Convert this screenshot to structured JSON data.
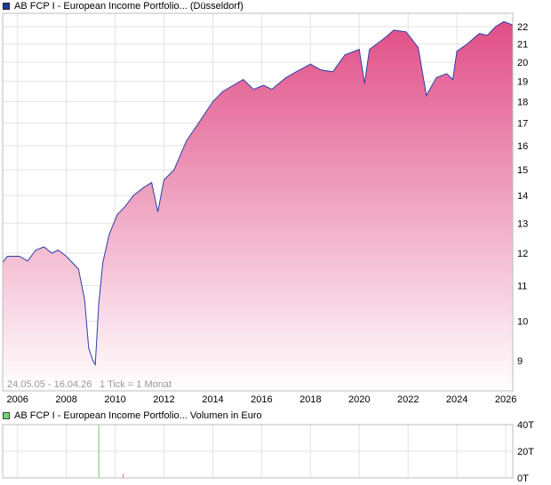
{
  "main_legend": {
    "label": "AB FCP I - European Income Portfolio... (Düsseldorf)",
    "color": "#1c3d9c"
  },
  "volume_legend": {
    "label": "AB FCP I - European Income Portfolio... Volumen in Euro",
    "color": "#6fd66f"
  },
  "info": {
    "range": "24.05.05 - 16.04.26",
    "tick": "1 Tick = 1 Monat"
  },
  "colors": {
    "line": "#2b3fa8",
    "fill_top": "#e04e86",
    "fill_bottom": "#ffffff",
    "grid": "#e3e3e3"
  },
  "chart_data": [
    {
      "type": "area",
      "title": "",
      "y_scale": "log",
      "ylim": [
        8.3,
        22.8
      ],
      "xlim": [
        "2005-05-24",
        "2026-04-16"
      ],
      "x_tick_labels": [
        "2006",
        "2008",
        "2010",
        "2012",
        "2014",
        "2016",
        "2018",
        "2020",
        "2022",
        "2024",
        "2026"
      ],
      "y_tick_labels": [
        "9",
        "10",
        "11",
        "12",
        "13",
        "14",
        "15",
        "16",
        "17",
        "18",
        "19",
        "20",
        "21",
        "22"
      ],
      "grid": true,
      "series": [
        {
          "values": [
            {
              "x": "2005-05-24",
              "y": 11.7
            },
            {
              "x": "2005-08-01",
              "y": 11.9
            },
            {
              "x": "2005-11-01",
              "y": 11.9
            },
            {
              "x": "2006-02-01",
              "y": 11.9
            },
            {
              "x": "2006-06-01",
              "y": 11.75
            },
            {
              "x": "2006-10-01",
              "y": 12.1
            },
            {
              "x": "2007-02-01",
              "y": 12.2
            },
            {
              "x": "2007-06-01",
              "y": 12.0
            },
            {
              "x": "2007-09-01",
              "y": 12.1
            },
            {
              "x": "2008-01-01",
              "y": 11.9
            },
            {
              "x": "2008-04-01",
              "y": 11.7
            },
            {
              "x": "2008-07-01",
              "y": 11.5
            },
            {
              "x": "2008-10-01",
              "y": 10.6
            },
            {
              "x": "2008-12-01",
              "y": 9.3
            },
            {
              "x": "2009-02-01",
              "y": 9.0
            },
            {
              "x": "2009-03-10",
              "y": 8.9
            },
            {
              "x": "2009-05-01",
              "y": 10.5
            },
            {
              "x": "2009-07-01",
              "y": 11.7
            },
            {
              "x": "2009-10-01",
              "y": 12.6
            },
            {
              "x": "2010-02-01",
              "y": 13.3
            },
            {
              "x": "2010-06-01",
              "y": 13.6
            },
            {
              "x": "2010-10-01",
              "y": 14.0
            },
            {
              "x": "2011-03-01",
              "y": 14.3
            },
            {
              "x": "2011-07-01",
              "y": 14.5
            },
            {
              "x": "2011-10-01",
              "y": 13.4
            },
            {
              "x": "2012-01-01",
              "y": 14.6
            },
            {
              "x": "2012-06-01",
              "y": 15.0
            },
            {
              "x": "2012-12-01",
              "y": 16.2
            },
            {
              "x": "2013-06-01",
              "y": 17.0
            },
            {
              "x": "2014-01-01",
              "y": 18.0
            },
            {
              "x": "2014-06-01",
              "y": 18.5
            },
            {
              "x": "2015-04-01",
              "y": 19.1
            },
            {
              "x": "2015-09-01",
              "y": 18.6
            },
            {
              "x": "2016-02-01",
              "y": 18.8
            },
            {
              "x": "2016-06-01",
              "y": 18.6
            },
            {
              "x": "2017-01-01",
              "y": 19.2
            },
            {
              "x": "2017-06-01",
              "y": 19.5
            },
            {
              "x": "2018-01-01",
              "y": 19.9
            },
            {
              "x": "2018-06-01",
              "y": 19.6
            },
            {
              "x": "2018-12-01",
              "y": 19.5
            },
            {
              "x": "2019-06-01",
              "y": 20.4
            },
            {
              "x": "2020-01-01",
              "y": 20.7
            },
            {
              "x": "2020-03-20",
              "y": 18.9
            },
            {
              "x": "2020-06-01",
              "y": 20.7
            },
            {
              "x": "2021-01-01",
              "y": 21.3
            },
            {
              "x": "2021-06-01",
              "y": 21.8
            },
            {
              "x": "2021-12-01",
              "y": 21.7
            },
            {
              "x": "2022-06-01",
              "y": 20.8
            },
            {
              "x": "2022-10-01",
              "y": 18.3
            },
            {
              "x": "2023-03-01",
              "y": 19.2
            },
            {
              "x": "2023-08-01",
              "y": 19.4
            },
            {
              "x": "2023-11-01",
              "y": 19.1
            },
            {
              "x": "2024-01-01",
              "y": 20.6
            },
            {
              "x": "2024-06-01",
              "y": 21.0
            },
            {
              "x": "2024-12-01",
              "y": 21.6
            },
            {
              "x": "2025-04-01",
              "y": 21.5
            },
            {
              "x": "2025-08-01",
              "y": 22.0
            },
            {
              "x": "2025-12-01",
              "y": 22.3
            },
            {
              "x": "2026-04-16",
              "y": 22.1
            }
          ]
        }
      ]
    },
    {
      "type": "bar",
      "title": "",
      "ylim": [
        0,
        40
      ],
      "y_tick_labels": [
        "0T",
        "20T",
        "40T"
      ],
      "series": [
        {
          "values": [
            {
              "x": "2009-05-01",
              "y": 40,
              "color": "#66cc66"
            },
            {
              "x": "2010-05-01",
              "y": 3,
              "color": "#e06060"
            }
          ]
        }
      ]
    }
  ]
}
